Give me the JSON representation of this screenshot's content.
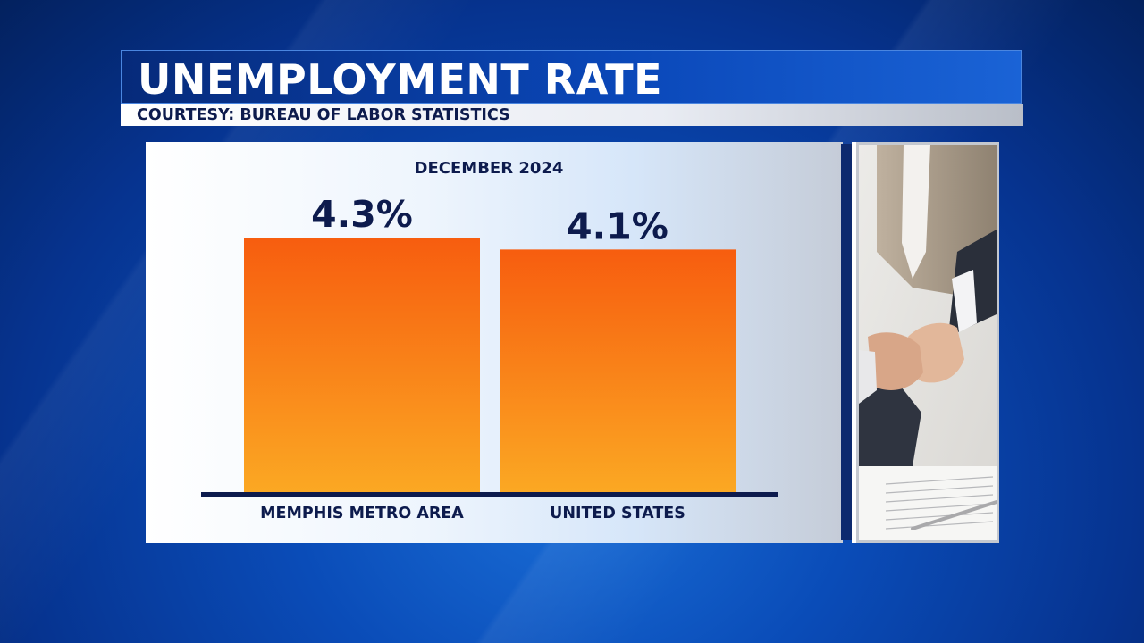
{
  "header": {
    "title": "UNEMPLOYMENT RATE",
    "courtesy": "COURTESY: BUREAU OF LABOR STATISTICS"
  },
  "colors": {
    "bar_top": "#f75d0f",
    "bar_bottom": "#fba823",
    "text_navy": "#0d1b4d",
    "axis": "#0d1b4d"
  },
  "photo": {
    "icon": "handshake-photo"
  },
  "chart_data": {
    "type": "bar",
    "subtitle": "DECEMBER 2024",
    "categories": [
      "MEMPHIS METRO AREA",
      "UNITED STATES"
    ],
    "values": [
      4.3,
      4.1
    ],
    "value_labels": [
      "4.3%",
      "4.1%"
    ],
    "ylim": [
      0,
      4.8
    ],
    "grid": false,
    "legend": "none"
  }
}
